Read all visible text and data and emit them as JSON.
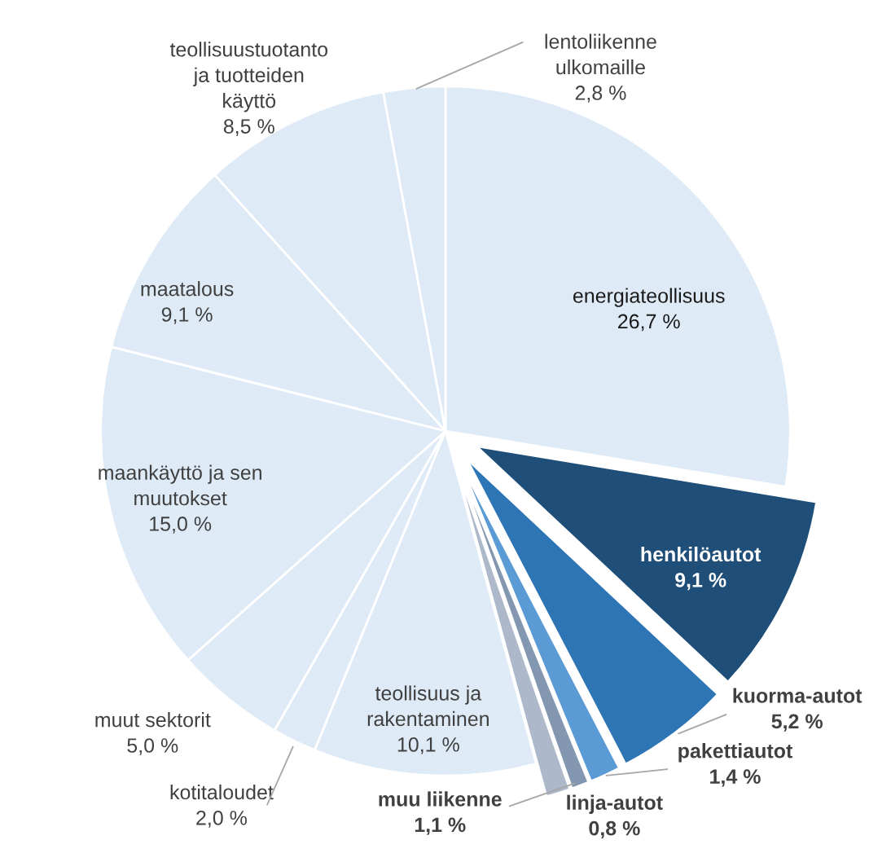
{
  "chart_data": {
    "type": "pie",
    "categories": [
      "energiateollisuus",
      "henkilöautot",
      "kuorma-autot",
      "pakettiautot",
      "linja-autot",
      "muu liikenne",
      "teollisuus ja\nrakentaminen",
      "kotitaloudet",
      "muut sektorit",
      "maankäyttö ja sen\nmuutokset",
      "maatalous",
      "teollisuustuotanto\nja tuotteiden\nkäyttö",
      "lentoliikenne\nulkomaille"
    ],
    "values": [
      26.7,
      9.1,
      5.2,
      1.4,
      0.8,
      1.1,
      10.1,
      2.0,
      5.0,
      15.0,
      9.1,
      8.5,
      2.8
    ],
    "value_labels": [
      "26,7 %",
      "9,1 %",
      "5,2 %",
      "1,4 %",
      "0,8 %",
      "1,1 %",
      "10,1 %",
      "2,0 %",
      "5,0 %",
      "15,0 %",
      "9,1 %",
      "8,5 %",
      "2,8 %"
    ],
    "colors": [
      "#deeaf6",
      "#1f4e79",
      "#2e75b6",
      "#5b9bd5",
      "#8497b0",
      "#adb9ca",
      "#deeaf6",
      "#deeaf6",
      "#deeaf6",
      "#deeaf6",
      "#deeaf6",
      "#deeaf6",
      "#deeaf6"
    ]
  }
}
